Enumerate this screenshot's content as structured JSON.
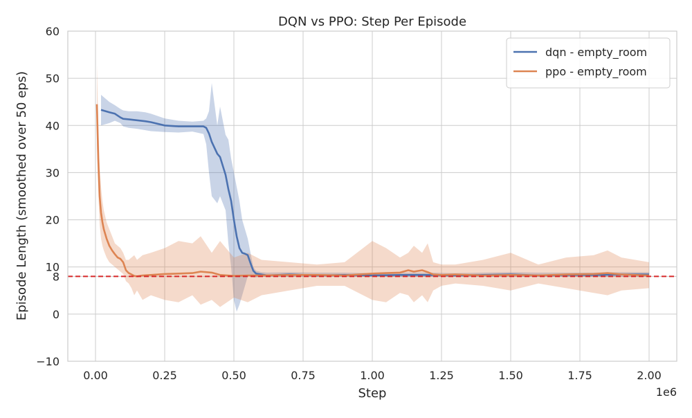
{
  "chart_data": {
    "type": "line",
    "title": "DQN vs PPO: Step Per Episode",
    "xlabel": "Step",
    "ylabel": "Episode Length (smoothed over 50 eps)",
    "x_offset_label": "1e6",
    "xlim": [
      -0.1,
      2.1
    ],
    "ylim": [
      -10,
      60
    ],
    "x_ticks": [
      0.0,
      0.25,
      0.5,
      0.75,
      1.0,
      1.25,
      1.5,
      1.75,
      2.0
    ],
    "x_tick_labels": [
      "0.00",
      "0.25",
      "0.50",
      "0.75",
      "1.00",
      "1.25",
      "1.50",
      "1.75",
      "2.00"
    ],
    "y_ticks": [
      -10,
      0,
      8,
      10,
      20,
      30,
      40,
      50,
      60
    ],
    "y_tick_labels": [
      "−10",
      "0",
      "8",
      "10",
      "20",
      "30",
      "40",
      "50",
      "60"
    ],
    "grid": true,
    "legend_position": "top-right",
    "reference_line": {
      "y": 8,
      "color": "#d62728",
      "style": "dashed"
    },
    "series": [
      {
        "name": "dqn - empty_room",
        "color": "#4c72b0",
        "x": [
          0.02,
          0.05,
          0.07,
          0.09,
          0.1,
          0.12,
          0.15,
          0.18,
          0.2,
          0.25,
          0.3,
          0.35,
          0.39,
          0.4,
          0.41,
          0.42,
          0.44,
          0.45,
          0.47,
          0.48,
          0.49,
          0.5,
          0.51,
          0.52,
          0.53,
          0.54,
          0.55,
          0.56,
          0.57,
          0.58,
          0.6,
          0.62,
          0.7,
          0.8,
          0.9,
          1.0,
          1.1,
          1.2,
          1.3,
          1.4,
          1.5,
          1.6,
          1.7,
          1.8,
          1.9,
          2.0
        ],
        "y": [
          43.3,
          42.8,
          42.5,
          41.7,
          41.4,
          41.3,
          41.1,
          40.9,
          40.7,
          40.0,
          39.8,
          39.8,
          39.8,
          39.5,
          38.3,
          36.5,
          34.0,
          33.3,
          29.5,
          26.5,
          24.0,
          20.0,
          16.5,
          14.0,
          13.0,
          12.8,
          12.5,
          10.8,
          9.2,
          8.6,
          8.4,
          8.2,
          8.4,
          8.2,
          8.3,
          8.2,
          8.3,
          8.3,
          8.2,
          8.3,
          8.4,
          8.2,
          8.3,
          8.3,
          8.4,
          8.4
        ],
        "band_low": [
          40.0,
          40.5,
          41.0,
          40.5,
          39.8,
          39.5,
          39.3,
          39.0,
          38.8,
          38.6,
          38.5,
          38.7,
          38.2,
          36.0,
          30.0,
          25.0,
          23.5,
          25.0,
          22.0,
          15.0,
          10.0,
          3.0,
          0.5,
          2.0,
          4.0,
          6.0,
          8.0,
          8.0,
          7.8,
          7.8,
          7.9,
          7.9,
          7.9,
          7.9,
          7.9,
          7.9,
          7.9,
          7.9,
          7.9,
          7.9,
          7.9,
          7.9,
          7.9,
          7.9,
          7.9,
          7.9
        ],
        "band_high": [
          46.5,
          45.0,
          44.3,
          43.5,
          43.2,
          43.0,
          43.0,
          42.8,
          42.5,
          41.5,
          41.0,
          40.8,
          41.0,
          41.5,
          43.0,
          49.0,
          40.0,
          44.0,
          38.0,
          37.0,
          33.0,
          30.0,
          27.0,
          24.0,
          20.0,
          18.0,
          16.0,
          13.0,
          10.0,
          9.2,
          8.9,
          8.8,
          8.9,
          8.8,
          8.8,
          8.7,
          8.8,
          8.8,
          8.7,
          8.8,
          8.9,
          8.8,
          8.8,
          8.8,
          8.9,
          8.9
        ]
      },
      {
        "name": "ppo - empty_room",
        "color": "#dd8452",
        "x": [
          0.005,
          0.01,
          0.015,
          0.02,
          0.025,
          0.03,
          0.04,
          0.05,
          0.06,
          0.07,
          0.08,
          0.09,
          0.1,
          0.11,
          0.12,
          0.13,
          0.14,
          0.15,
          0.17,
          0.2,
          0.25,
          0.3,
          0.35,
          0.38,
          0.42,
          0.45,
          0.5,
          0.55,
          0.6,
          0.7,
          0.8,
          0.9,
          1.0,
          1.05,
          1.1,
          1.13,
          1.15,
          1.18,
          1.2,
          1.22,
          1.25,
          1.3,
          1.4,
          1.5,
          1.6,
          1.7,
          1.8,
          1.85,
          1.9,
          2.0
        ],
        "y": [
          44.5,
          33.0,
          25.0,
          21.5,
          19.5,
          18.0,
          16.0,
          14.5,
          13.5,
          12.7,
          12.0,
          11.7,
          11.0,
          9.3,
          8.7,
          8.4,
          8.1,
          8.0,
          8.2,
          8.3,
          8.5,
          8.6,
          8.7,
          9.0,
          8.8,
          8.3,
          8.1,
          8.2,
          8.2,
          8.3,
          8.3,
          8.2,
          8.6,
          8.7,
          8.8,
          9.3,
          9.0,
          9.3,
          8.9,
          8.4,
          8.3,
          8.4,
          8.2,
          8.3,
          8.2,
          8.4,
          8.5,
          8.7,
          8.4,
          8.2
        ],
        "band_low": [
          36.0,
          26.0,
          19.0,
          16.0,
          14.5,
          13.5,
          12.0,
          11.0,
          10.5,
          10.0,
          9.5,
          9.0,
          8.5,
          7.0,
          6.5,
          5.5,
          4.0,
          5.0,
          3.0,
          4.0,
          3.0,
          2.5,
          4.0,
          2.0,
          3.0,
          1.5,
          3.5,
          2.5,
          4.0,
          5.0,
          6.0,
          6.0,
          3.0,
          2.5,
          4.5,
          4.0,
          2.5,
          4.0,
          2.5,
          5.0,
          6.0,
          6.5,
          6.0,
          5.0,
          6.5,
          5.5,
          4.5,
          4.0,
          5.0,
          5.5
        ],
        "band_high": [
          53.0,
          41.0,
          31.0,
          27.0,
          24.0,
          22.0,
          19.5,
          18.0,
          16.5,
          15.0,
          14.5,
          14.0,
          13.0,
          11.5,
          11.5,
          12.0,
          12.5,
          11.5,
          12.5,
          13.0,
          14.0,
          15.5,
          15.0,
          16.5,
          13.0,
          15.5,
          12.0,
          13.0,
          11.5,
          11.0,
          10.5,
          11.0,
          15.5,
          14.0,
          12.0,
          13.0,
          14.5,
          13.0,
          15.0,
          11.0,
          10.5,
          10.5,
          11.5,
          13.0,
          10.5,
          12.0,
          12.5,
          13.5,
          12.0,
          11.0
        ]
      }
    ]
  }
}
